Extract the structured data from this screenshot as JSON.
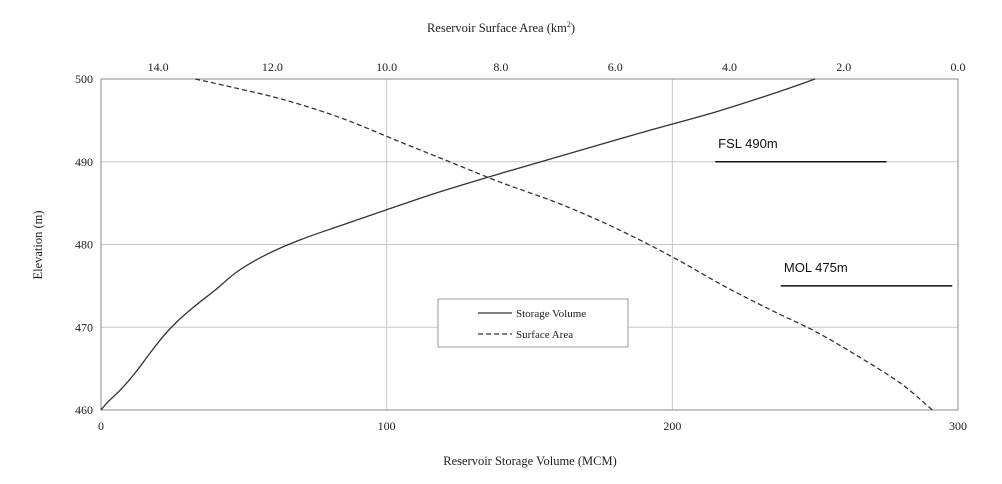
{
  "chart_data": {
    "type": "line",
    "x_axis_bottom": {
      "label": "Reservoir Storage Volume (MCM)",
      "range": [
        0,
        300
      ],
      "ticks": [
        0,
        100,
        200,
        300
      ],
      "tick_labels": [
        "0",
        "100",
        "200",
        "300"
      ]
    },
    "x_axis_top": {
      "label": "Reservoir Surface Area (km",
      "label_sup": "2",
      "label_end": ")",
      "range": [
        15,
        0
      ],
      "reversed": true,
      "ticks": [
        14,
        12,
        10,
        8,
        6,
        4,
        2,
        0
      ],
      "tick_labels": [
        "14.0",
        "12.0",
        "10.0",
        "8.0",
        "6.0",
        "4.0",
        "2.0",
        "0.0"
      ]
    },
    "y_axis": {
      "label": "Elevation (m)",
      "range": [
        460,
        500
      ],
      "ticks": [
        460,
        470,
        480,
        490,
        500
      ],
      "tick_labels": [
        "460",
        "470",
        "480",
        "490",
        "500"
      ]
    },
    "grid": true,
    "legend_position": "center-bottom",
    "series": [
      {
        "name": "Storage Volume",
        "axis": "bottom",
        "style": "solid",
        "color": "#333333",
        "points": [
          [
            0,
            460
          ],
          [
            2.5,
            461
          ],
          [
            7,
            462.5
          ],
          [
            12,
            464.5
          ],
          [
            17,
            466.8
          ],
          [
            22,
            469
          ],
          [
            27,
            470.8
          ],
          [
            33,
            472.6
          ],
          [
            40,
            474.5
          ],
          [
            48,
            476.8
          ],
          [
            58,
            478.8
          ],
          [
            70,
            480.6
          ],
          [
            84,
            482.3
          ],
          [
            100,
            484.2
          ],
          [
            118,
            486.3
          ],
          [
            140,
            488.6
          ],
          [
            165,
            491.1
          ],
          [
            190,
            493.6
          ],
          [
            215,
            496
          ],
          [
            235,
            498.2
          ],
          [
            250,
            500
          ]
        ]
      },
      {
        "name": "Surface Area",
        "axis": "top",
        "style": "dashed",
        "color": "#333333",
        "points": [
          [
            13.35,
            500
          ],
          [
            12.7,
            499
          ],
          [
            11.8,
            497.5
          ],
          [
            10.8,
            495.3
          ],
          [
            9.8,
            492.5
          ],
          [
            8.9,
            490
          ],
          [
            8.0,
            487.5
          ],
          [
            7.0,
            485
          ],
          [
            6.0,
            482
          ],
          [
            5.0,
            478.5
          ],
          [
            4.1,
            475
          ],
          [
            3.25,
            472
          ],
          [
            2.5,
            469.5
          ],
          [
            1.75,
            466.5
          ],
          [
            1.0,
            463.2
          ],
          [
            0.45,
            460
          ]
        ]
      }
    ],
    "annotations": [
      {
        "label": "FSL 490m",
        "level": 490,
        "x_from": 215,
        "x_to": 275
      },
      {
        "label": "MOL 475m",
        "level": 475,
        "x_from": 238,
        "x_to": 298
      }
    ]
  }
}
